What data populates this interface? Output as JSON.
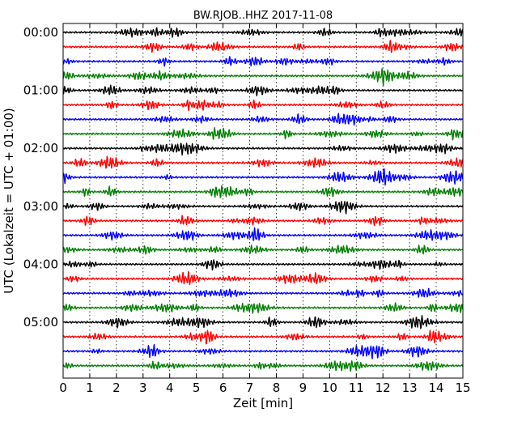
{
  "chart_data": {
    "type": "line",
    "title": "BW.RJOB..HHZ 2017-11-08",
    "xlabel": "Zeit  [min]",
    "ylabel": "UTC (Lokalzeit = UTC + 01:00)",
    "xlim": [
      0,
      15
    ],
    "x_ticks": [
      "0",
      "1",
      "2",
      "3",
      "4",
      "5",
      "6",
      "7",
      "8",
      "9",
      "10",
      "11",
      "12",
      "13",
      "14",
      "15"
    ],
    "y_tick_labels": [
      "00:00",
      "01:00",
      "02:00",
      "03:00",
      "04:00",
      "05:00"
    ],
    "trace_interval_min": 15,
    "trace_count": 24,
    "start_time": "00:00",
    "end_time": "06:00",
    "grid": {
      "x": "dotted",
      "y": "none"
    },
    "series_colors": [
      "#000000",
      "#ff0000",
      "#0000ff",
      "#008000"
    ],
    "color_cycle": [
      "black",
      "red",
      "blue",
      "green"
    ]
  }
}
